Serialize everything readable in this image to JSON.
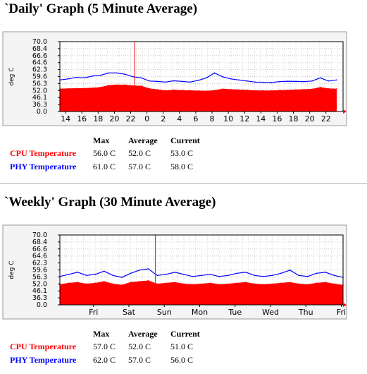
{
  "daily": {
    "title": "`Daily' Graph (5 Minute Average)",
    "stats": {
      "headers": [
        "Max",
        "Average",
        "Current"
      ],
      "rows": [
        {
          "label": "CPU Temperature",
          "max": "56.0 C",
          "avg": "52.0 C",
          "cur": "53.0 C"
        },
        {
          "label": "PHY Temperature",
          "max": "61.0 C",
          "avg": "57.0 C",
          "cur": "58.0 C"
        }
      ]
    }
  },
  "weekly": {
    "title": "`Weekly' Graph (30 Minute Average)",
    "stats": {
      "headers": [
        "Max",
        "Average",
        "Current"
      ],
      "rows": [
        {
          "label": "CPU Temperature",
          "max": "57.0 C",
          "avg": "52.0 C",
          "cur": "51.0 C"
        },
        {
          "label": "PHY Temperature",
          "max": "62.0 C",
          "avg": "57.0 C",
          "cur": "56.0 C"
        }
      ]
    }
  },
  "colors": {
    "cpu": "#ff0000",
    "phy": "#0000ff",
    "plot_bg": "#ffffff",
    "panel_bg": "#f4f4f4"
  },
  "chart_data": [
    {
      "type": "area",
      "ylabel": "deg C",
      "ylim": [
        0,
        70
      ],
      "yticks": [
        "70.0",
        "68.4",
        "66.6",
        "64.6",
        "62.3",
        "59.6",
        "56.3",
        "52.0",
        "46.1",
        "36.3",
        "0.0"
      ],
      "yticks_numeric": [
        70.0,
        68.4,
        66.6,
        64.6,
        62.3,
        59.6,
        56.3,
        52.0,
        46.1,
        36.3,
        0.0
      ],
      "xticks": [
        "14",
        "16",
        "18",
        "20",
        "22",
        "0",
        "2",
        "4",
        "6",
        "8",
        "10",
        "12",
        "14",
        "16",
        "18",
        "20",
        "22"
      ],
      "grid": true,
      "marker_hours_from_start": 9.2,
      "x_hours": [
        0,
        1,
        2,
        3,
        4,
        5,
        6,
        7,
        8,
        9,
        10,
        11,
        12,
        13,
        14,
        15,
        16,
        17,
        18,
        19,
        20,
        21,
        22,
        23,
        24,
        25,
        26,
        27,
        28,
        29,
        30,
        31,
        32,
        33,
        34
      ],
      "series": [
        {
          "name": "CPU Temperature",
          "values": [
            53.0,
            53.2,
            53.3,
            53.4,
            53.6,
            54.0,
            55.2,
            55.5,
            55.5,
            55.0,
            54.8,
            53.2,
            52.6,
            52.0,
            52.4,
            52.2,
            52.0,
            51.8,
            51.6,
            52.1,
            53.0,
            52.7,
            52.5,
            52.3,
            52.0,
            51.9,
            51.9,
            52.2,
            52.3,
            52.5,
            52.7,
            52.9,
            54.0,
            53.2,
            53.0
          ]
        },
        {
          "name": "PHY Temperature",
          "values": [
            58.0,
            58.5,
            59.2,
            59.0,
            59.8,
            60.1,
            61.0,
            61.0,
            60.5,
            59.5,
            59.0,
            57.5,
            57.3,
            57.0,
            57.6,
            57.3,
            57.0,
            57.8,
            59.0,
            61.0,
            59.5,
            58.5,
            58.0,
            57.5,
            57.0,
            56.9,
            56.8,
            57.2,
            57.4,
            57.3,
            57.2,
            57.5,
            59.0,
            57.5,
            58.0
          ]
        }
      ]
    },
    {
      "type": "area",
      "ylabel": "deg C",
      "ylim": [
        0,
        70
      ],
      "yticks": [
        "70.0",
        "68.4",
        "66.6",
        "64.6",
        "62.3",
        "59.6",
        "56.3",
        "52.0",
        "46.1",
        "36.3",
        "0.0"
      ],
      "yticks_numeric": [
        70.0,
        68.4,
        66.6,
        64.6,
        62.3,
        59.6,
        56.3,
        52.0,
        46.1,
        36.3,
        0.0
      ],
      "xticks": [
        "Fri",
        "Sat",
        "Sun",
        "Mon",
        "Tue",
        "Wed",
        "Thu",
        "Fri"
      ],
      "grid": true,
      "marker_day": 2.7,
      "x_days": [
        0,
        0.25,
        0.5,
        0.75,
        1,
        1.25,
        1.5,
        1.75,
        2,
        2.25,
        2.5,
        2.75,
        3,
        3.25,
        3.5,
        3.75,
        4,
        4.25,
        4.5,
        4.75,
        5,
        5.25,
        5.5,
        5.75,
        6,
        6.25,
        6.5,
        6.75,
        7,
        7.25,
        7.5,
        7.75,
        8
      ],
      "series": [
        {
          "name": "CPU Temperature",
          "values": [
            51.5,
            52.5,
            53.0,
            52.0,
            52.5,
            53.5,
            52.0,
            51.0,
            53.0,
            53.5,
            54.0,
            52.0,
            52.5,
            53.0,
            52.0,
            51.5,
            52.0,
            52.5,
            51.5,
            52.0,
            52.5,
            53.0,
            52.0,
            51.5,
            52.0,
            52.5,
            53.0,
            52.0,
            51.5,
            52.5,
            53.0,
            52.0,
            51.0
          ]
        },
        {
          "name": "PHY Temperature",
          "values": [
            56.5,
            57.5,
            58.5,
            57.0,
            57.5,
            59.0,
            57.0,
            56.0,
            58.0,
            59.5,
            60.0,
            57.0,
            57.5,
            58.5,
            57.5,
            56.5,
            57.0,
            57.5,
            56.5,
            57.0,
            58.0,
            58.5,
            57.0,
            56.5,
            57.0,
            58.0,
            59.5,
            57.0,
            56.5,
            58.0,
            58.5,
            57.0,
            56.0
          ]
        }
      ]
    }
  ]
}
